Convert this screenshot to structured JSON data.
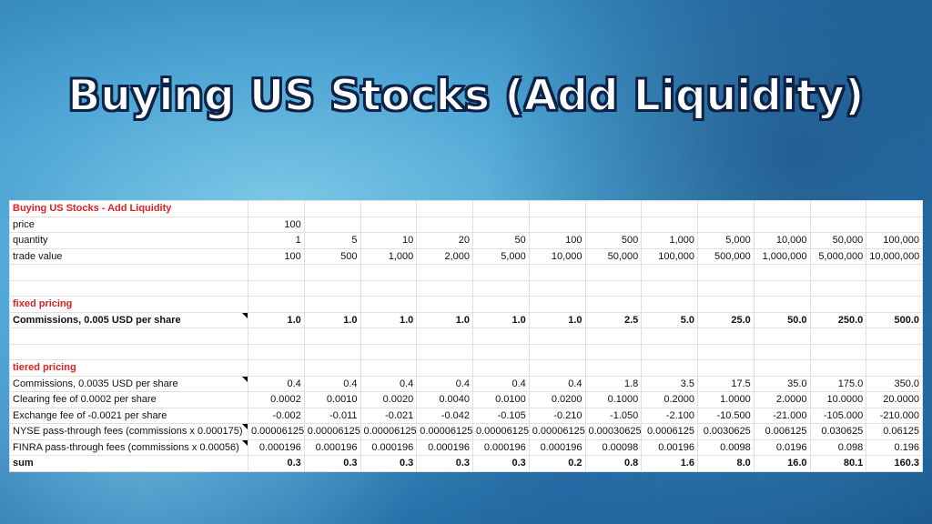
{
  "header": {
    "title": "Buying US Stocks (Add Liquidity)"
  },
  "table": {
    "heading": "Buying US Stocks - Add Liquidity",
    "inputs": [
      {
        "label": "price",
        "cells": [
          "100",
          null,
          null,
          null,
          null,
          null,
          null,
          null,
          null,
          null,
          null,
          null
        ]
      },
      {
        "label": "quantity",
        "cells": [
          "1",
          "5",
          "10",
          "20",
          "50",
          "100",
          "500",
          "1,000",
          "5,000",
          "10,000",
          "50,000",
          "100,000"
        ]
      },
      {
        "label": "trade value",
        "cells": [
          "100",
          "500",
          "1,000",
          "2,000",
          "5,000",
          "10,000",
          "50,000",
          "100,000",
          "500,000",
          "1,000,000",
          "5,000,000",
          "10,000,000"
        ]
      }
    ],
    "sections": [
      {
        "heading": "fixed pricing",
        "rows": [
          {
            "label": "Commissions, 0.005 USD per share",
            "bold": true,
            "comment": true,
            "cells": [
              "1.0",
              "1.0",
              "1.0",
              "1.0",
              "1.0",
              "1.0",
              "2.5",
              "5.0",
              "25.0",
              "50.0",
              "250.0",
              "500.0"
            ]
          }
        ]
      },
      {
        "heading": "tiered pricing",
        "rows": [
          {
            "label": "Commissions, 0.0035 USD per share",
            "comment": true,
            "cells": [
              "0.4",
              "0.4",
              "0.4",
              "0.4",
              "0.4",
              "0.4",
              "1.8",
              "3.5",
              "17.5",
              "35.0",
              "175.0",
              "350.0"
            ]
          },
          {
            "label": "Clearing fee of 0.0002 per share",
            "cells": [
              "0.0002",
              "0.0010",
              "0.0020",
              "0.0040",
              "0.0100",
              "0.0200",
              "0.1000",
              "0.2000",
              "1.0000",
              "2.0000",
              "10.0000",
              "20.0000"
            ]
          },
          {
            "label": "Exchange fee of -0.0021 per share",
            "cells": [
              "-0.002",
              "-0.011",
              "-0.021",
              "-0.042",
              "-0.105",
              "-0.210",
              "-1.050",
              "-2.100",
              "-10.500",
              "-21.000",
              "-105.000",
              "-210.000"
            ]
          },
          {
            "label": "NYSE pass-through fees (commissions x 0.000175)",
            "comment": true,
            "cells": [
              "0.00006125",
              "0.00006125",
              "0.00006125",
              "0.00006125",
              "0.00006125",
              "0.00006125",
              "0.00030625",
              "0.0006125",
              "0.0030625",
              "0.006125",
              "0.030625",
              "0.06125"
            ]
          },
          {
            "label": "FINRA pass-through fees (commissions x 0.00056)",
            "comment": true,
            "cells": [
              "0.000196",
              "0.000196",
              "0.000196",
              "0.000196",
              "0.000196",
              "0.000196",
              "0.00098",
              "0.00196",
              "0.0098",
              "0.0196",
              "0.098",
              "0.196"
            ]
          },
          {
            "label": "sum",
            "bold": true,
            "cells": [
              "0.3",
              "0.3",
              "0.3",
              "0.3",
              "0.3",
              "0.2",
              "0.8",
              "1.6",
              "8.0",
              "16.0",
              "80.1",
              "160.3"
            ]
          }
        ]
      }
    ]
  }
}
